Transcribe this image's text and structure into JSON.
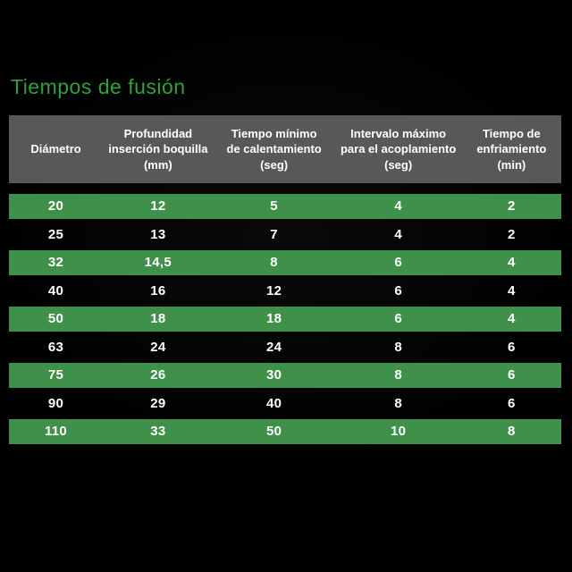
{
  "title": "Tiempos de fusión",
  "colors": {
    "background": "#000000",
    "title_green": "#2da43a",
    "row_green": "#3f9149",
    "header_gray": "#58585a",
    "text": "#ffffff"
  },
  "table": {
    "headers": [
      "Diámetro",
      "Profundidad\ninserción boquilla\n(mm)",
      "Tiempo mínimo\nde calentamiento\n(seg)",
      "Intervalo máximo\npara el acoplamiento\n(seg)",
      "Tiempo de\nenfriamiento\n(min)"
    ],
    "rows": [
      {
        "highlight": true,
        "values": [
          "20",
          "12",
          "5",
          "4",
          "2"
        ]
      },
      {
        "highlight": false,
        "values": [
          "25",
          "13",
          "7",
          "4",
          "2"
        ]
      },
      {
        "highlight": true,
        "values": [
          "32",
          "14,5",
          "8",
          "6",
          "4"
        ]
      },
      {
        "highlight": false,
        "values": [
          "40",
          "16",
          "12",
          "6",
          "4"
        ]
      },
      {
        "highlight": true,
        "values": [
          "50",
          "18",
          "18",
          "6",
          "4"
        ]
      },
      {
        "highlight": false,
        "values": [
          "63",
          "24",
          "24",
          "8",
          "6"
        ]
      },
      {
        "highlight": true,
        "values": [
          "75",
          "26",
          "30",
          "8",
          "6"
        ]
      },
      {
        "highlight": false,
        "values": [
          "90",
          "29",
          "40",
          "8",
          "6"
        ]
      },
      {
        "highlight": true,
        "values": [
          "110",
          "33",
          "50",
          "10",
          "8"
        ]
      }
    ]
  },
  "chart_data": {
    "type": "table",
    "title": "Tiempos de fusión",
    "columns": [
      "Diámetro",
      "Profundidad inserción boquilla (mm)",
      "Tiempo mínimo de calentamiento (seg)",
      "Intervalo máximo para el acoplamiento (seg)",
      "Tiempo de enfriamiento (min)"
    ],
    "rows": [
      [
        20,
        12,
        5,
        4,
        2
      ],
      [
        25,
        13,
        7,
        4,
        2
      ],
      [
        32,
        14.5,
        8,
        6,
        4
      ],
      [
        40,
        16,
        12,
        6,
        4
      ],
      [
        50,
        18,
        18,
        6,
        4
      ],
      [
        63,
        24,
        24,
        8,
        6
      ],
      [
        75,
        26,
        30,
        8,
        6
      ],
      [
        90,
        29,
        40,
        8,
        6
      ],
      [
        110,
        33,
        50,
        10,
        8
      ]
    ],
    "highlighted_row_indices": [
      0,
      2,
      4,
      6,
      8
    ],
    "layout": "dark slide, title top-left, gray header band, alternating green/black striped rows"
  }
}
